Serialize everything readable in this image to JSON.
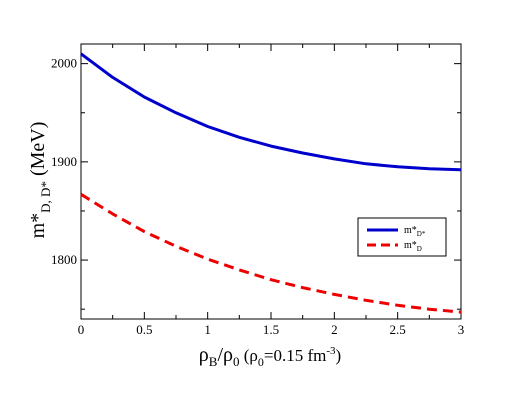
{
  "chart_data": {
    "type": "line",
    "xlabel": {
      "main": "ρ",
      "main_sub": "B",
      "slash": "/ρ",
      "slash_sub": "0",
      "paren_open": "  (ρ",
      "paren_sub": "0",
      "paren_eq": "=0.15 fm",
      "paren_sup": "-3",
      "paren_close": ")"
    },
    "ylabel": {
      "main": "m*",
      "sub": "D, D*",
      "unit": "  (MeV)"
    },
    "xlim": [
      0,
      3
    ],
    "ylim": [
      1740,
      2020
    ],
    "x_ticks": [
      0,
      0.5,
      1,
      1.5,
      2,
      2.5,
      3
    ],
    "x_tick_labels": [
      "0",
      "0.5",
      "1",
      "1.5",
      "2",
      "2.5",
      "3"
    ],
    "y_ticks": [
      1800,
      1900,
      2000
    ],
    "y_tick_labels": [
      "1800",
      "1900",
      "2000"
    ],
    "legend_position": "right",
    "series": [
      {
        "name": "m*D*",
        "label_main": "m*",
        "label_sub": "D*",
        "color": "#0000cc",
        "dash": "solid",
        "x": [
          0,
          0.25,
          0.5,
          0.75,
          1,
          1.25,
          1.5,
          1.75,
          2,
          2.25,
          2.5,
          2.75,
          3
        ],
        "y": [
          2010,
          1986,
          1966,
          1950,
          1936,
          1925,
          1916,
          1909,
          1903,
          1898,
          1895,
          1893,
          1892
        ]
      },
      {
        "name": "m*D",
        "label_main": "m*",
        "label_sub": "D",
        "color": "#ee0000",
        "dash": "dashed",
        "x": [
          0,
          0.25,
          0.5,
          0.75,
          1,
          1.25,
          1.5,
          1.75,
          2,
          2.25,
          2.5,
          2.75,
          3
        ],
        "y": [
          1867,
          1847,
          1829,
          1814,
          1801,
          1790,
          1780,
          1772,
          1765,
          1759,
          1754,
          1750,
          1747
        ]
      }
    ]
  }
}
